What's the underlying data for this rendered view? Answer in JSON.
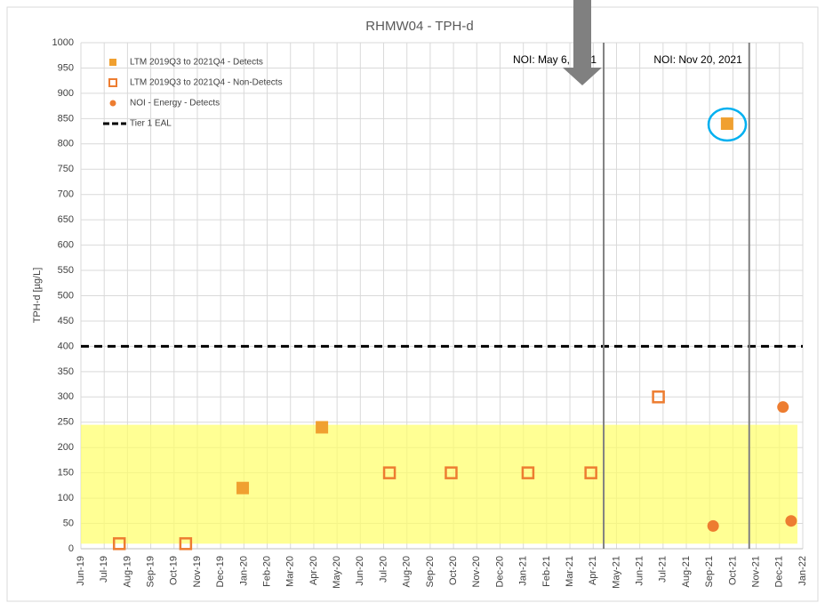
{
  "chart_data": {
    "type": "scatter",
    "title": "RHMW04 - TPH-d",
    "ylabel": "TPH-d [µg/L]",
    "xlim": [
      0,
      31
    ],
    "xticks": [
      {
        "value": 0,
        "label": "Jun-19"
      },
      {
        "value": 1,
        "label": "Jul-19"
      },
      {
        "value": 2,
        "label": "Aug-19"
      },
      {
        "value": 3,
        "label": "Sep-19"
      },
      {
        "value": 4,
        "label": "Oct-19"
      },
      {
        "value": 5,
        "label": "Nov-19"
      },
      {
        "value": 6,
        "label": "Dec-19"
      },
      {
        "value": 7,
        "label": "Jan-20"
      },
      {
        "value": 8,
        "label": "Feb-20"
      },
      {
        "value": 9,
        "label": "Mar-20"
      },
      {
        "value": 10,
        "label": "Apr-20"
      },
      {
        "value": 11,
        "label": "May-20"
      },
      {
        "value": 12,
        "label": "Jun-20"
      },
      {
        "value": 13,
        "label": "Jul-20"
      },
      {
        "value": 14,
        "label": "Aug-20"
      },
      {
        "value": 15,
        "label": "Sep-20"
      },
      {
        "value": 16,
        "label": "Oct-20"
      },
      {
        "value": 17,
        "label": "Nov-20"
      },
      {
        "value": 18,
        "label": "Dec-20"
      },
      {
        "value": 19,
        "label": "Jan-21"
      },
      {
        "value": 20,
        "label": "Feb-21"
      },
      {
        "value": 21,
        "label": "Mar-21"
      },
      {
        "value": 22,
        "label": "Apr-21"
      },
      {
        "value": 23,
        "label": "May-21"
      },
      {
        "value": 24,
        "label": "Jun-21"
      },
      {
        "value": 25,
        "label": "Jul-21"
      },
      {
        "value": 26,
        "label": "Aug-21"
      },
      {
        "value": 27,
        "label": "Sep-21"
      },
      {
        "value": 28,
        "label": "Oct-21"
      },
      {
        "value": 29,
        "label": "Nov-21"
      },
      {
        "value": 30,
        "label": "Dec-21"
      },
      {
        "value": 31,
        "label": "Jan-22"
      }
    ],
    "ylim": [
      0,
      1000
    ],
    "yticks": [
      0,
      50,
      100,
      150,
      200,
      250,
      300,
      350,
      400,
      450,
      500,
      550,
      600,
      650,
      700,
      750,
      800,
      850,
      900,
      950,
      1000
    ],
    "grid": true,
    "legend": "upper left",
    "series": [
      {
        "name": "LTM 2019Q3 to 2021Q4 - Detects",
        "marker": "square-filled",
        "color": "#f0a030",
        "x": [
          6.95,
          10.35,
          27.75
        ],
        "values": [
          120,
          240,
          840
        ]
      },
      {
        "name": "LTM 2019Q3 to 2021Q4 - Non-Detects",
        "marker": "square-open",
        "color": "#ed7d31",
        "x": [
          1.65,
          4.5,
          13.25,
          15.9,
          19.2,
          21.9,
          24.8
        ],
        "values": [
          10,
          10,
          150,
          150,
          150,
          150,
          300
        ]
      },
      {
        "name": "NOI - Energy - Detects",
        "marker": "circle",
        "color": "#ed7d31",
        "x": [
          27.15,
          30.15,
          30.5
        ],
        "values": [
          45,
          280,
          55
        ]
      }
    ],
    "hlines": [
      {
        "name": "Tier 1 EAL",
        "value": 400,
        "color": "#000000"
      }
    ],
    "band": {
      "range": [
        10,
        245
      ],
      "color": "#ffff66"
    },
    "vlines": [
      {
        "text": "NOI: May 6, 2021",
        "x": 22.45
      },
      {
        "text": "NOI: Nov 20, 2021",
        "x": 28.7
      }
    ]
  }
}
